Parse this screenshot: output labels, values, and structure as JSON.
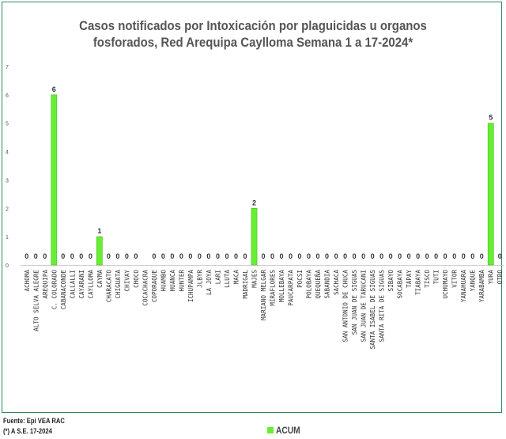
{
  "colors": {
    "bar": "#66ee33",
    "bar_edge": "#4cb82a",
    "frame": "#2e8b57",
    "text": "#444444",
    "title": "#555555"
  },
  "chart_data": {
    "type": "bar",
    "title": "Casos notificados por Intoxicación por plaguicidas u organos fosforados, Red Arequipa Caylloma Semana 1 a 17-2024*",
    "xlabel": "",
    "ylabel": "",
    "ylim": [
      0,
      7
    ],
    "yticks": [
      0,
      1,
      2,
      3,
      4,
      5,
      6,
      7
    ],
    "grid": false,
    "legend_position": "bottom",
    "categories": [
      "ACHOMA",
      "ALTO SELVA ALEGRE",
      "AREQUIPA",
      "C. COLORADO",
      "CABANACONDE",
      "CALLALLI",
      "CAYARANI",
      "CAYLLOMA",
      "CAYMA",
      "CHARACATO",
      "CHIGUATA",
      "CHIVAY",
      "CHOCO",
      "COCACHACRA",
      "COPORAQUE",
      "HUAMBO",
      "HUANCA",
      "HUNTER",
      "ICHUPAMPA",
      "JLBYR",
      "LA JOYA",
      "LARI",
      "LLUTA",
      "MACA",
      "MADRIGAL",
      "MAJES",
      "MARIANO MELGAR",
      "MIRAFLORES",
      "MOLLEBAYA",
      "PAUCARPATA",
      "POCSI",
      "POLOBAYA",
      "QUEQUEÑA",
      "SABANDIA",
      "SACHACA",
      "SAN ANTONIO DE CHUCA",
      "SAN JUAN DE SIGUAS",
      "SAN JUAN DE TARUCANI",
      "SANTA ISABEL DE SIGUAS",
      "SANTA RITA DE SIGUAS",
      "SIBAYO",
      "SOCABAYA",
      "TAPAY",
      "TIABAYA",
      "TISCO",
      "TUTI",
      "UCHUMAYO",
      "VITOR",
      "YANAHUARA",
      "YANQUE",
      "YARABAMBA",
      "YURA",
      "OTRO"
    ],
    "value_labels": [
      "0",
      "0",
      "0",
      "6",
      "0",
      "0",
      "0",
      "0",
      "1",
      "0",
      "0",
      "0",
      "0",
      "",
      "0",
      "0",
      "0",
      "0",
      "0",
      "0",
      "0",
      "0",
      "0",
      "0",
      "0",
      "2",
      "0",
      "0",
      "0",
      "0",
      "0",
      "0",
      "0",
      "0",
      "0",
      "0",
      "0",
      "0",
      "0",
      "0",
      "0",
      "0",
      "0",
      "0",
      "0",
      "0",
      "0",
      "0",
      "0",
      "0",
      "0",
      "5",
      "0"
    ],
    "series": [
      {
        "name": "ACUM",
        "values": [
          0,
          0,
          0,
          6,
          0,
          0,
          0,
          0,
          1,
          0,
          0,
          0,
          0,
          0,
          0,
          0,
          0,
          0,
          0,
          0,
          0,
          0,
          0,
          0,
          0,
          2,
          0,
          0,
          0,
          0,
          0,
          0,
          0,
          0,
          0,
          0,
          0,
          0,
          0,
          0,
          0,
          0,
          0,
          0,
          0,
          0,
          0,
          0,
          0,
          0,
          0,
          5,
          0
        ]
      }
    ]
  },
  "footer": {
    "source": "Fuente: Epi VEA RAC",
    "note": "(*) A S.E. 17-2024"
  },
  "legend": {
    "label": "ACUM"
  }
}
